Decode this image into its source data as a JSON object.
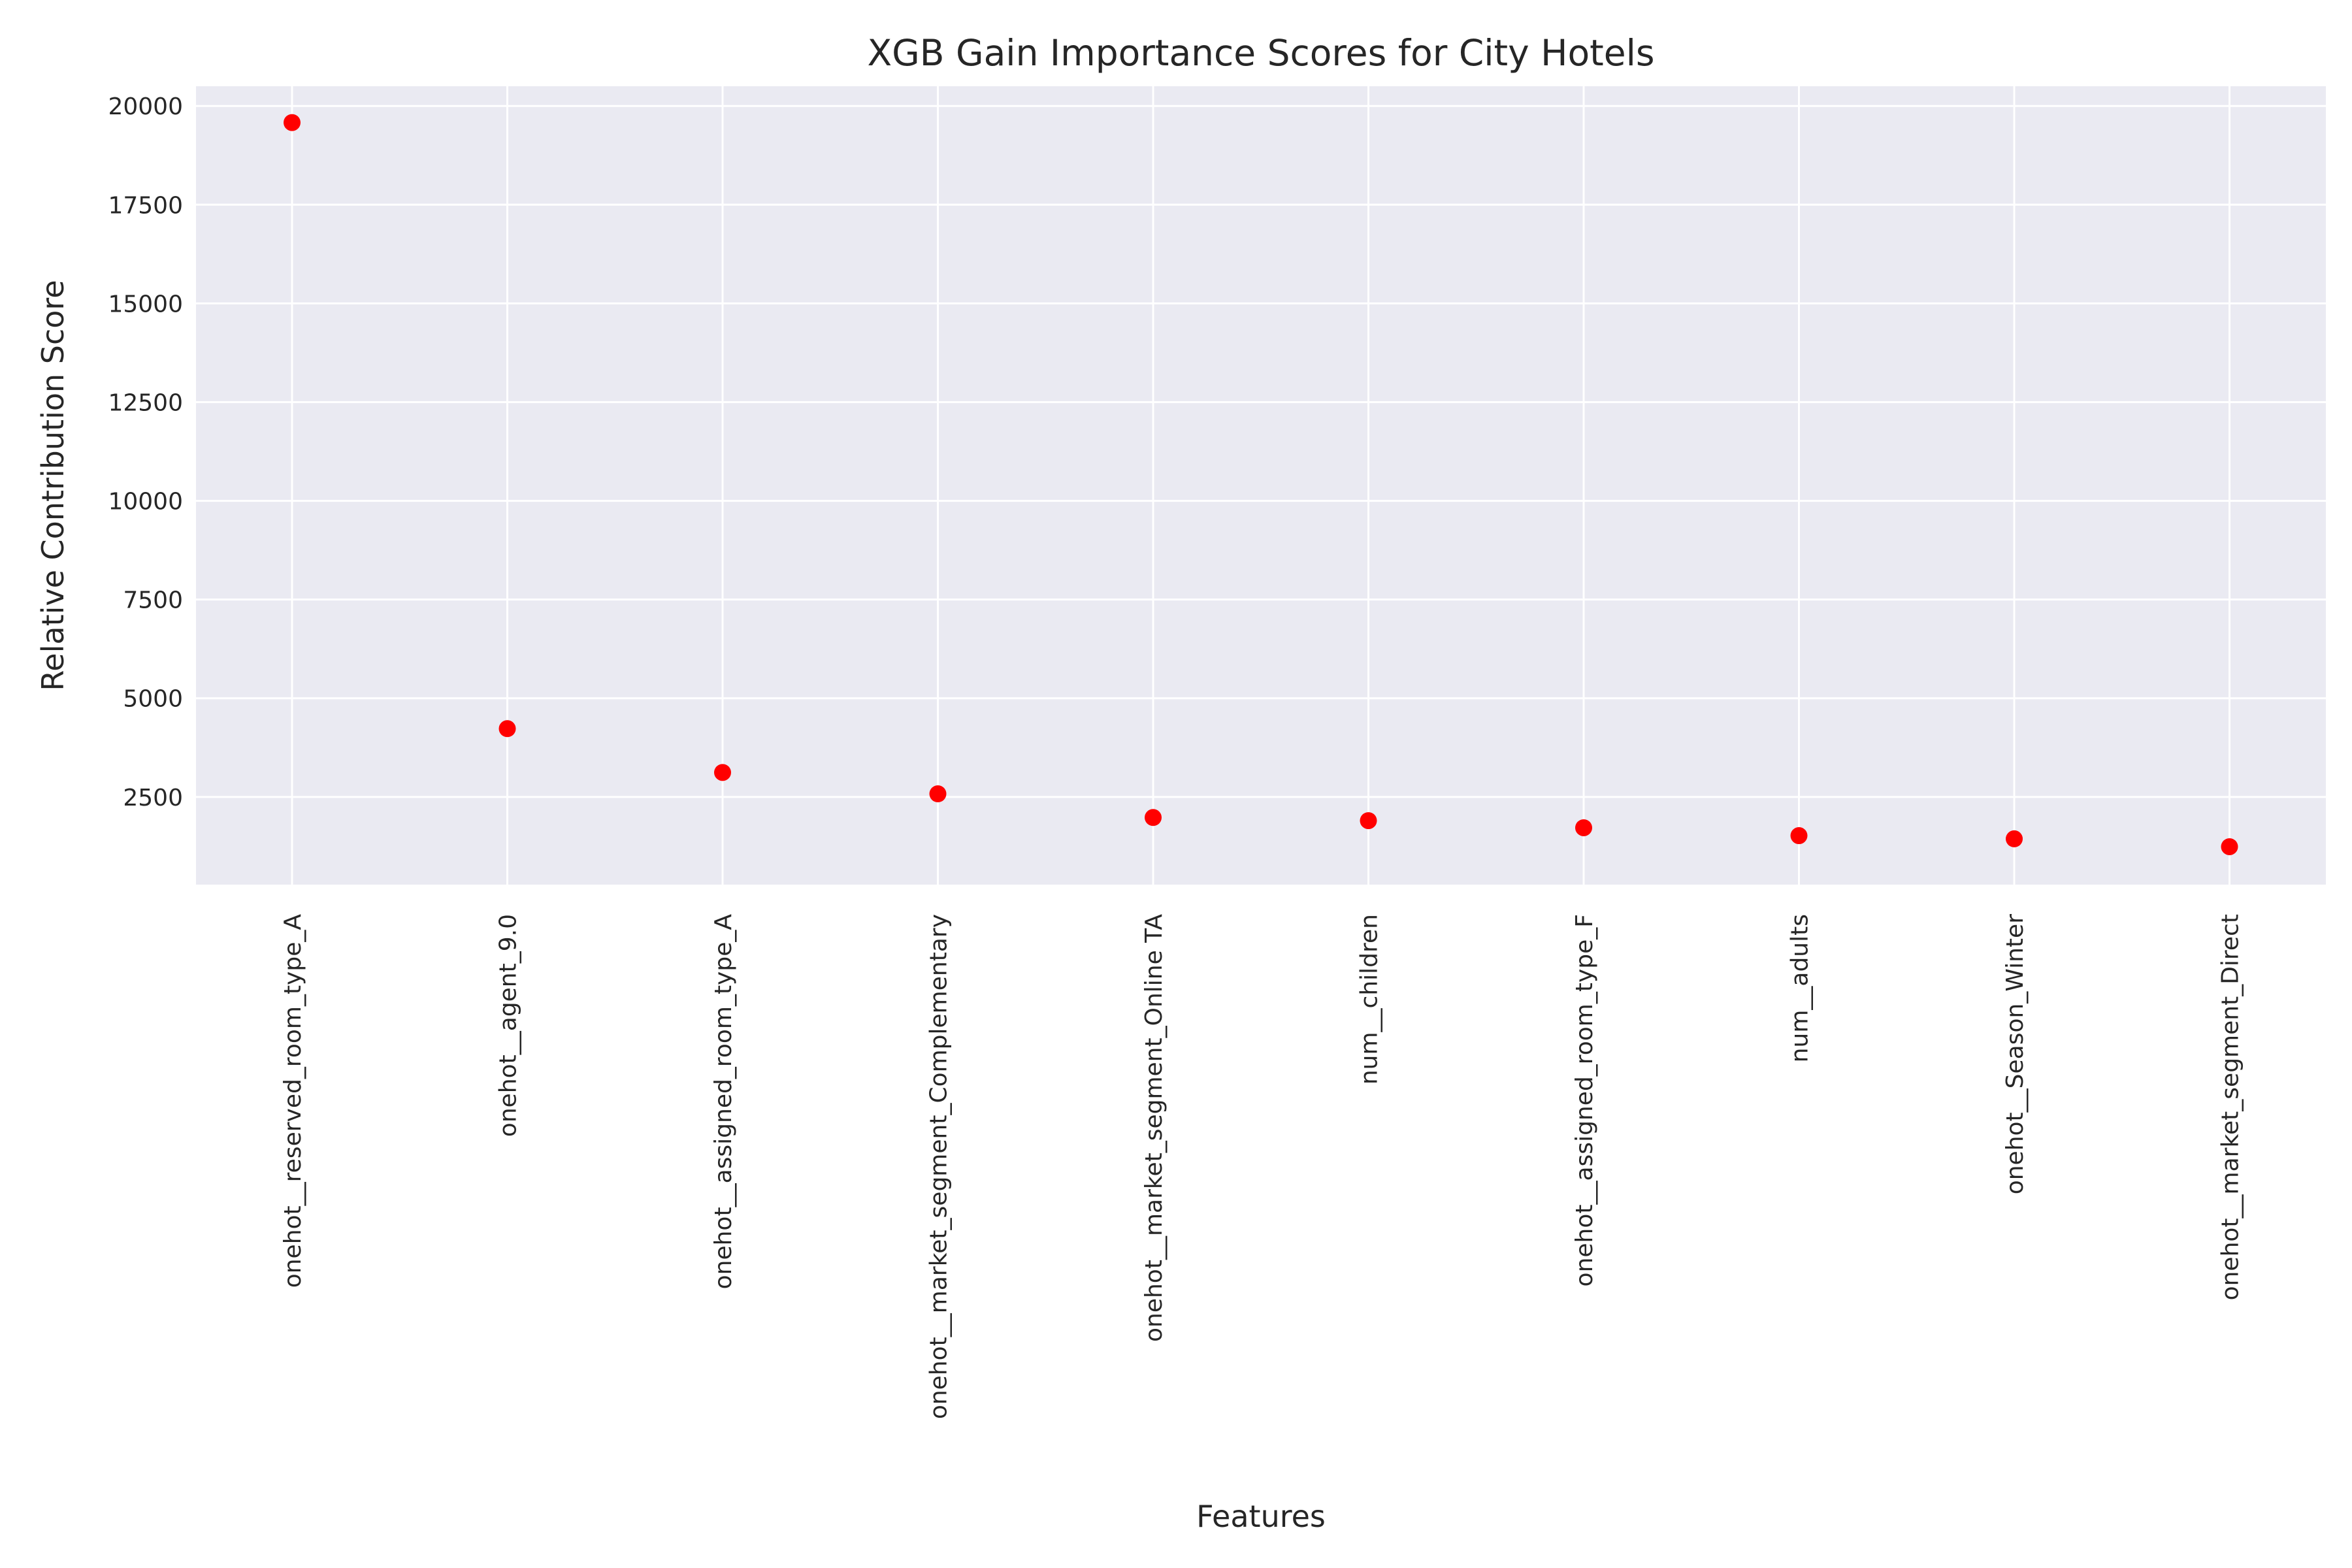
{
  "chart_data": {
    "type": "scatter",
    "title": "XGB Gain Importance Scores for City Hotels",
    "xlabel": "Features",
    "ylabel": "Relative Contribution Score",
    "categories": [
      "onehot__reserved_room_type_A",
      "onehot__agent_9.0",
      "onehot__assigned_room_type_A",
      "onehot__market_segment_Complementary",
      "onehot__market_segment_Online TA",
      "num__children",
      "onehot__assigned_room_type_F",
      "num__adults",
      "onehot__Season_Winter",
      "onehot__market_segment_Direct"
    ],
    "values": [
      19580,
      4230,
      3120,
      2580,
      1980,
      1900,
      1720,
      1520,
      1440,
      1240
    ],
    "ylim": [
      280,
      20500
    ],
    "yticks": [
      2500,
      5000,
      7500,
      10000,
      12500,
      15000,
      17500,
      20000
    ],
    "ytick_labels": [
      "2500",
      "5000",
      "7500",
      "10000",
      "12500",
      "15000",
      "17500",
      "20000"
    ],
    "grid": true,
    "marker_color": "#ff0000",
    "background_color": "#eaeaf2"
  }
}
